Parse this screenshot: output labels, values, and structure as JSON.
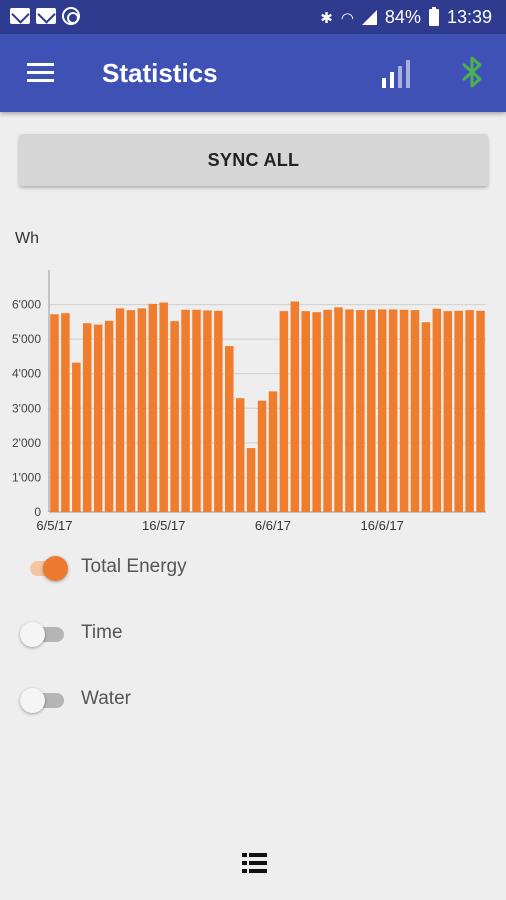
{
  "status_bar": {
    "battery": "84%",
    "time": "13:39",
    "icons": [
      "mail-icon",
      "mail-icon",
      "at-sign-icon",
      "bluetooth-icon",
      "wifi-icon",
      "cell-signal-icon",
      "battery-icon"
    ]
  },
  "app_bar": {
    "title": "Statistics",
    "icons": [
      "menu-icon",
      "signal-strength-icon",
      "bluetooth-icon"
    ],
    "bluetooth_color": "#4caf50"
  },
  "sync_button": {
    "label": "SYNC ALL"
  },
  "chart_data": {
    "type": "bar",
    "ylabel": "Wh",
    "ylim": [
      0,
      7000
    ],
    "y_ticks": [
      "0",
      "1'000",
      "2'000",
      "3'000",
      "4'000",
      "5'000",
      "6'000"
    ],
    "x_tick_labels": [
      {
        "label": "6/5/17",
        "index": 0
      },
      {
        "label": "16/5/17",
        "index": 10
      },
      {
        "label": "6/6/17",
        "index": 20
      },
      {
        "label": "16/6/17",
        "index": 30
      }
    ],
    "grid": "horizontal",
    "bar_color": "#f07d2d",
    "series": [
      {
        "name": "Total Energy",
        "values": [
          5720,
          5750,
          4320,
          5460,
          5420,
          5530,
          5890,
          5840,
          5890,
          6020,
          6060,
          5520,
          5850,
          5850,
          5830,
          5820,
          4800,
          3290,
          1850,
          3220,
          3490,
          5810,
          6090,
          5810,
          5780,
          5850,
          5920,
          5860,
          5840,
          5850,
          5860,
          5860,
          5850,
          5840,
          5490,
          5880,
          5810,
          5820,
          5840,
          5820
        ]
      }
    ]
  },
  "toggles": [
    {
      "label": "Total Energy",
      "on": true
    },
    {
      "label": "Time",
      "on": false
    },
    {
      "label": "Water",
      "on": false
    }
  ],
  "bottom": {
    "icon": "list-icon"
  },
  "colors": {
    "primary": "#3f51b5",
    "status_bar": "#2e3b8f",
    "accent": "#ee7a2f"
  }
}
